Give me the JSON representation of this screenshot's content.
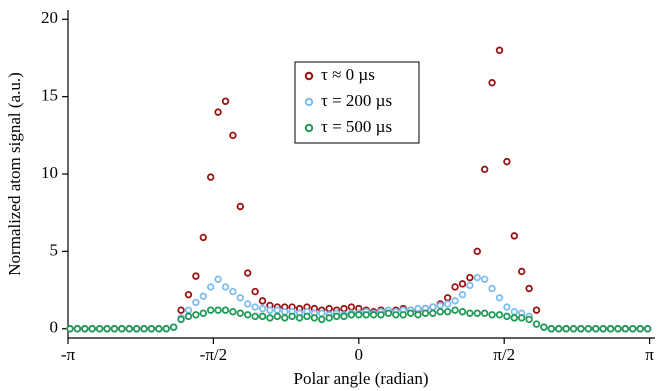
{
  "chart_data": {
    "type": "scatter",
    "xlabel": "Polar angle (radian)",
    "ylabel": "Normalized atom signal (a.u.)",
    "xlim": [
      -3.1416,
      3.2
    ],
    "ylim": [
      -0.6,
      20.6
    ],
    "xticks": [
      {
        "value": -3.1416,
        "label": "-π"
      },
      {
        "value": -1.5708,
        "label": "-π/2"
      },
      0,
      {
        "value": 1.5708,
        "label": "π/2"
      },
      {
        "value": 3.1416,
        "label": "π"
      }
    ],
    "yticks": [
      0,
      5,
      10,
      15,
      20
    ],
    "legend": "upper-center",
    "x": [
      -3.12,
      -3.04,
      -2.96,
      -2.88,
      -2.8,
      -2.72,
      -2.64,
      -2.56,
      -2.48,
      -2.4,
      -2.32,
      -2.24,
      -2.16,
      -2.08,
      -2,
      -1.92,
      -1.84,
      -1.76,
      -1.68,
      -1.6,
      -1.52,
      -1.44,
      -1.36,
      -1.28,
      -1.2,
      -1.12,
      -1.04,
      -0.96,
      -0.88,
      -0.8,
      -0.72,
      -0.64,
      -0.56,
      -0.48,
      -0.4,
      -0.32,
      -0.24,
      -0.16,
      -0.08,
      0,
      0.08,
      0.16,
      0.24,
      0.32,
      0.4,
      0.48,
      0.56,
      0.64,
      0.72,
      0.8,
      0.88,
      0.96,
      1.04,
      1.12,
      1.2,
      1.28,
      1.36,
      1.44,
      1.52,
      1.6,
      1.68,
      1.76,
      1.84,
      1.92,
      2,
      2.08,
      2.16,
      2.24,
      2.32,
      2.4,
      2.48,
      2.56,
      2.64,
      2.72,
      2.8,
      2.88,
      2.96,
      3.04,
      3.12
    ],
    "series": [
      {
        "name": "τ ≈ 0 µs",
        "color": "#9b1111",
        "values": [
          0,
          0,
          0,
          0,
          0,
          0,
          0,
          0,
          0,
          0,
          0,
          0,
          0,
          0,
          0.1,
          1.2,
          2.2,
          3.4,
          5.9,
          9.8,
          14.0,
          14.7,
          12.5,
          7.9,
          3.6,
          2.4,
          1.8,
          1.5,
          1.4,
          1.4,
          1.4,
          1.3,
          1.4,
          1.3,
          1.2,
          1.3,
          1.2,
          1.3,
          1.4,
          1.3,
          1.2,
          1.1,
          1.2,
          1.1,
          1.2,
          1.3,
          1.2,
          1.2,
          1.3,
          1.4,
          1.6,
          2.0,
          2.7,
          2.9,
          3.3,
          5.0,
          10.3,
          15.9,
          18.0,
          10.8,
          6.0,
          3.7,
          2.6,
          1.2,
          0.1,
          0,
          0,
          0,
          0,
          0,
          0,
          0,
          0,
          0,
          0,
          0,
          0,
          0,
          0
        ]
      },
      {
        "name": "τ = 200 µs",
        "color": "#7cbcf0",
        "values": [
          0,
          0,
          0,
          0,
          0,
          0,
          0,
          0,
          0,
          0,
          0,
          0,
          0,
          0,
          0.1,
          0.7,
          1.2,
          1.7,
          2.1,
          2.7,
          3.2,
          2.7,
          2.4,
          2.0,
          1.6,
          1.4,
          1.3,
          1.2,
          1.2,
          1.1,
          1.1,
          1.0,
          1.1,
          1.0,
          1.0,
          0.9,
          1.0,
          0.9,
          1.0,
          1.0,
          1.1,
          1.0,
          1.1,
          1.2,
          1.1,
          1.2,
          1.2,
          1.3,
          1.3,
          1.4,
          1.5,
          1.6,
          1.8,
          2.2,
          2.8,
          3.3,
          3.2,
          2.6,
          2.0,
          1.4,
          1.1,
          1.0,
          0.8,
          0.3,
          0.1,
          0,
          0,
          0,
          0,
          0,
          0,
          0,
          0,
          0,
          0,
          0,
          0,
          0,
          0
        ]
      },
      {
        "name": "τ = 500 µs",
        "color": "#1c9a56",
        "values": [
          0,
          0,
          0,
          0,
          0,
          0,
          0,
          0,
          0,
          0,
          0,
          0,
          0,
          0,
          0.1,
          0.6,
          0.8,
          0.9,
          1.0,
          1.2,
          1.2,
          1.2,
          1.1,
          1.0,
          0.9,
          0.8,
          0.8,
          0.7,
          0.8,
          0.7,
          0.8,
          0.7,
          0.8,
          0.7,
          0.6,
          0.7,
          0.8,
          0.8,
          0.9,
          0.9,
          0.9,
          0.9,
          0.9,
          1.0,
          0.9,
          0.9,
          1.0,
          0.9,
          1.0,
          1.0,
          1.1,
          1.1,
          1.2,
          1.1,
          1.0,
          1.0,
          1.0,
          0.9,
          0.9,
          0.8,
          0.7,
          0.7,
          0.6,
          0.3,
          0.1,
          0,
          0,
          0,
          0,
          0,
          0,
          0,
          0,
          0,
          0,
          0,
          0,
          0,
          0
        ]
      }
    ]
  }
}
